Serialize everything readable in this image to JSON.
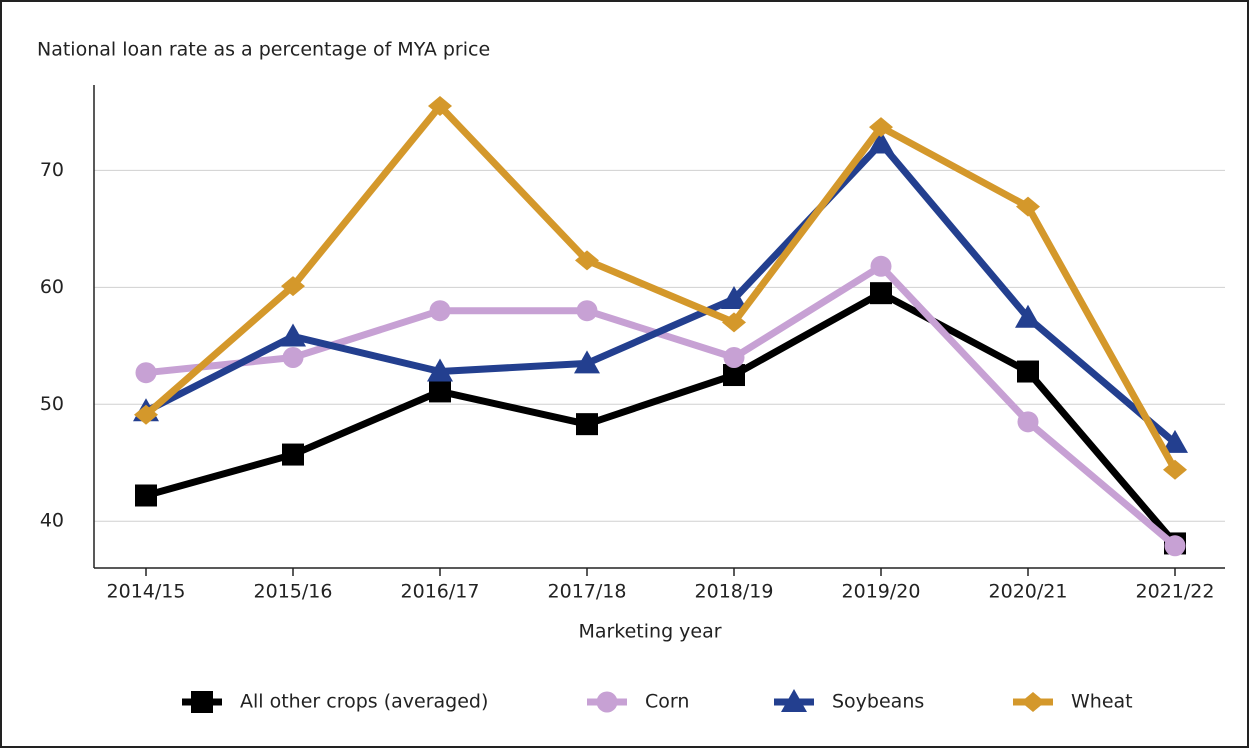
{
  "chart_data": {
    "type": "line",
    "title": "National loan rate as a percentage of MYA price",
    "x_label": "Marketing year",
    "categories": [
      "2014/15",
      "2015/16",
      "2016/17",
      "2017/18",
      "2018/19",
      "2019/20",
      "2020/21",
      "2021/22"
    ],
    "series": [
      {
        "name": "All other crops (averaged)",
        "color": "#000000",
        "marker": "square",
        "values": [
          42.2,
          45.7,
          51.1,
          48.3,
          52.5,
          59.5,
          52.8,
          38.1
        ]
      },
      {
        "name": "Corn",
        "color": "#c7a1d4",
        "marker": "circle",
        "values": [
          52.7,
          54.0,
          58.0,
          58.0,
          54.0,
          61.8,
          48.5,
          37.9
        ]
      },
      {
        "name": "Soybeans",
        "color": "#233f8f",
        "marker": "triangle",
        "values": [
          49.4,
          55.8,
          52.8,
          53.5,
          59.0,
          72.3,
          57.4,
          46.7
        ]
      },
      {
        "name": "Wheat",
        "color": "#d4982b",
        "marker": "diamond",
        "values": [
          49.1,
          60.1,
          75.5,
          62.3,
          57.0,
          73.7,
          66.9,
          44.4
        ]
      }
    ],
    "ylim": [
      36,
      77.3
    ],
    "yticks": [
      40,
      50,
      60,
      70
    ],
    "grid": true,
    "legend": "bottom"
  }
}
